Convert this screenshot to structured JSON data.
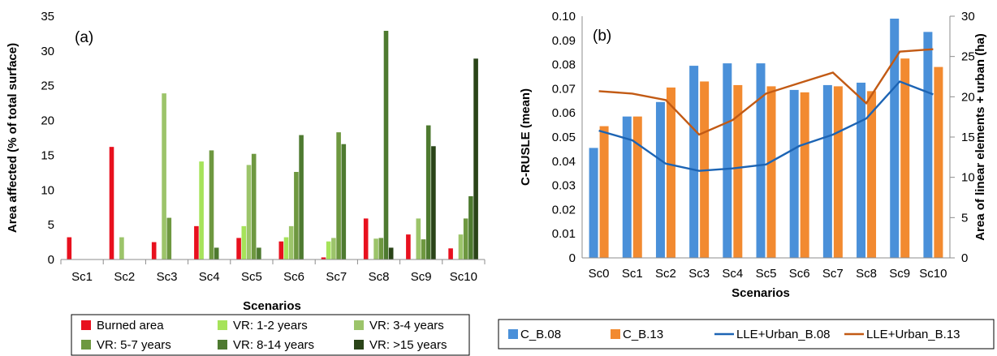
{
  "chart_data": [
    {
      "type": "bar",
      "panel_label": "(a)",
      "xlabel": "Scenarios",
      "ylabel": "Area affected (% of total surface)",
      "ylim": [
        0,
        35
      ],
      "yticks": [
        0,
        5,
        10,
        15,
        20,
        25,
        30,
        35
      ],
      "categories": [
        "Sc1",
        "Sc2",
        "Sc3",
        "Sc4",
        "Sc5",
        "Sc6",
        "Sc7",
        "Sc8",
        "Sc9",
        "Sc10"
      ],
      "legend_position": "bottom",
      "series": [
        {
          "name": "Burned area",
          "color": "#e8101e",
          "values": [
            3.2,
            16.2,
            2.5,
            4.8,
            3.1,
            2.6,
            0.3,
            5.9,
            3.6,
            1.6
          ]
        },
        {
          "name": "VR: 1-2 years",
          "color": "#a6e35a",
          "values": [
            0,
            0,
            0,
            14.1,
            4.8,
            3.2,
            2.6,
            0,
            0,
            0
          ]
        },
        {
          "name": "VR: 3-4 years",
          "color": "#9cc46a",
          "values": [
            0,
            3.2,
            23.9,
            0,
            13.6,
            4.8,
            3.1,
            3.0,
            5.9,
            3.6
          ]
        },
        {
          "name": "VR: 5-7 years",
          "color": "#6e9840",
          "values": [
            0,
            0,
            6.0,
            15.7,
            15.2,
            12.6,
            18.3,
            3.1,
            2.9,
            5.9
          ]
        },
        {
          "name": "VR: 8-14 years",
          "color": "#4e7a30",
          "values": [
            0,
            0,
            0,
            1.7,
            1.7,
            17.9,
            16.6,
            32.9,
            19.3,
            9.1
          ]
        },
        {
          "name": "VR: >15 years",
          "color": "#2a4418",
          "values": [
            0,
            0,
            0,
            0,
            0,
            0,
            0,
            1.7,
            16.3,
            28.9
          ]
        }
      ]
    },
    {
      "type": "bar",
      "panel_label": "(b)",
      "xlabel": "Scenarios",
      "ylabel": "C-RUSLE (mean)",
      "ylabel_right": "Area of linear elements + urban (ha)",
      "ylim": [
        0,
        0.1
      ],
      "yticks": [
        0,
        0.01,
        0.02,
        0.03,
        0.04,
        0.05,
        0.06,
        0.07,
        0.08,
        0.09,
        0.1
      ],
      "ytick_labels": [
        "0",
        "0.01",
        "0.02",
        "0.03",
        "0.04",
        "0.05",
        "0.06",
        "0.07",
        "0.08",
        "0.09",
        "0.10"
      ],
      "ylim_right": [
        0,
        30
      ],
      "yticks_right": [
        0,
        5,
        10,
        15,
        20,
        25,
        30
      ],
      "categories": [
        "Sc0",
        "Sc1",
        "Sc2",
        "Sc3",
        "Sc4",
        "Sc5",
        "Sc6",
        "Sc7",
        "Sc8",
        "Sc9",
        "Sc10"
      ],
      "legend_position": "bottom",
      "bar_series": [
        {
          "name": "C_B.08",
          "color": "#4a90d9",
          "values": [
            0.0455,
            0.0585,
            0.0645,
            0.0795,
            0.0805,
            0.0805,
            0.0695,
            0.0715,
            0.0725,
            0.099,
            0.0935
          ]
        },
        {
          "name": "C_B.13",
          "color": "#f28a30",
          "values": [
            0.0545,
            0.0585,
            0.0705,
            0.073,
            0.0715,
            0.071,
            0.0685,
            0.071,
            0.069,
            0.0825,
            0.079
          ]
        }
      ],
      "line_series": [
        {
          "name": "LLE+Urban_B.08",
          "color": "#1c64b4",
          "axis": "right",
          "values": [
            15.8,
            14.6,
            11.7,
            10.8,
            11.1,
            11.6,
            13.9,
            15.3,
            17.3,
            21.9,
            20.3
          ]
        },
        {
          "name": "LLE+Urban_B.13",
          "color": "#c25a14",
          "axis": "right",
          "values": [
            20.7,
            20.4,
            19.6,
            15.3,
            17.1,
            20.4,
            21.7,
            23.0,
            19.2,
            25.6,
            25.9
          ]
        }
      ]
    }
  ]
}
